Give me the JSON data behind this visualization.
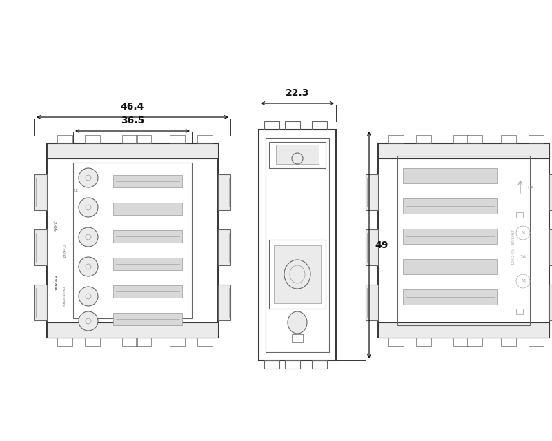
{
  "bg_color": "#ffffff",
  "lc_main": "#3a3a3a",
  "lc_mid": "#666666",
  "lc_light": "#999999",
  "lc_fill": "#d8d8d8",
  "lc_fill2": "#ebebeb",
  "dim_color": "#111111",
  "dim_46_4": "46.4",
  "dim_36_5": "36.5",
  "dim_22_3": "22.3",
  "dim_49": "49",
  "text_arke": "ARKÉ",
  "text_19594": "19594.0",
  "text_vimar": "VIMAR",
  "text_made": "MADE IN ITALY",
  "text_100_240": "100-240V~ 50/60HZ",
  "text_2a": "2A",
  "text_n": "N",
  "text_up": "UP",
  "text_m": "M",
  "lw_outer": 1.5,
  "lw_inner": 0.8,
  "lw_thin": 0.5,
  "lw_dim": 0.9
}
